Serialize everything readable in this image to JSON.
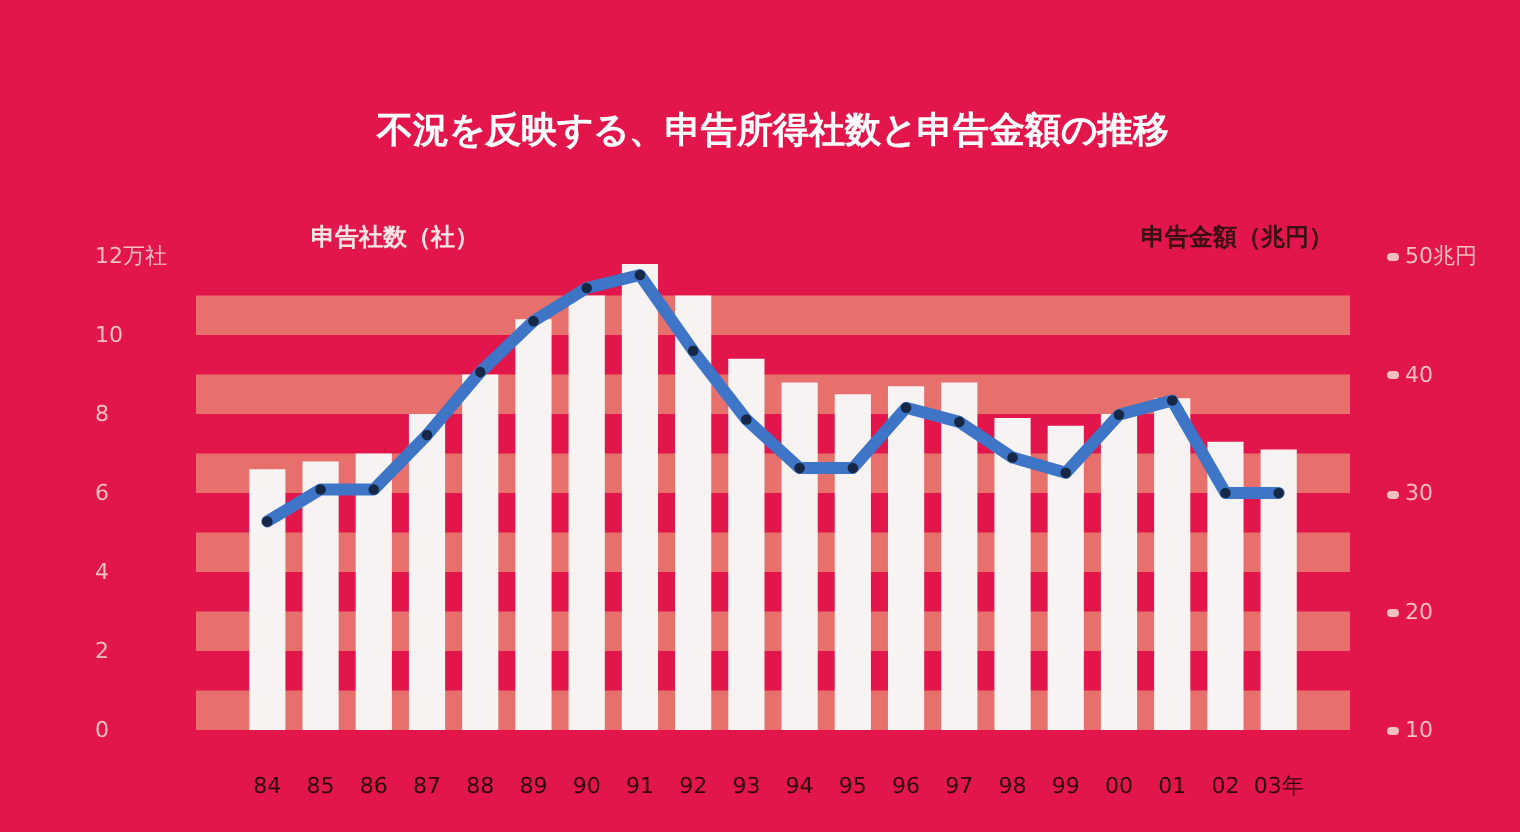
{
  "chart_data": {
    "type": "bar",
    "title": "不況を反映する、申告所得社数と申告金額の推移",
    "ylabel": "申告社数（社）",
    "y2label": "申告金額（兆円）",
    "categories": [
      "84",
      "85",
      "86",
      "87",
      "88",
      "89",
      "90",
      "91",
      "92",
      "93",
      "94",
      "95",
      "96",
      "97",
      "98",
      "99",
      "00",
      "01",
      "02",
      "03年"
    ],
    "series": [
      {
        "color": "#f7f3f3",
        "values": [
          6.6,
          6.8,
          7.0,
          8.0,
          9.0,
          10.4,
          11.0,
          11.8,
          11.0,
          9.4,
          8.8,
          8.5,
          8.7,
          8.8,
          7.9,
          7.7,
          8.0,
          8.4,
          7.3,
          7.1
        ]
      },
      {
        "type": "line",
        "axis": "y2",
        "color": "#3f75c6",
        "values": [
          27.6,
          30.3,
          30.3,
          34.9,
          40.2,
          44.5,
          47.3,
          48.4,
          42.0,
          36.2,
          32.1,
          32.1,
          37.2,
          36.0,
          33.0,
          31.7,
          36.6,
          37.8,
          30.0,
          30.0
        ]
      }
    ],
    "marker": "circle",
    "ylim": [
      0,
      12
    ],
    "yticks": [
      0,
      2,
      4,
      6,
      8,
      10,
      {
        "value": 12,
        "label": "12万社"
      }
    ],
    "y2lim": [
      10,
      50
    ],
    "y2ticks": [
      10,
      20,
      30,
      40,
      {
        "value": 50,
        "label": "50兆円"
      }
    ],
    "bands": [
      {
        "axis": "y",
        "from": 0,
        "to": 1,
        "color": "#e8706c"
      },
      {
        "axis": "y",
        "from": 2,
        "to": 3,
        "color": "#e8706c"
      },
      {
        "axis": "y",
        "from": 4,
        "to": 5,
        "color": "#e8706c"
      },
      {
        "axis": "y",
        "from": 6,
        "to": 7,
        "color": "#e8706c"
      },
      {
        "axis": "y",
        "from": 8,
        "to": 9,
        "color": "#e8706c"
      },
      {
        "axis": "y",
        "from": 10,
        "to": 11,
        "color": "#e8706c"
      }
    ]
  }
}
